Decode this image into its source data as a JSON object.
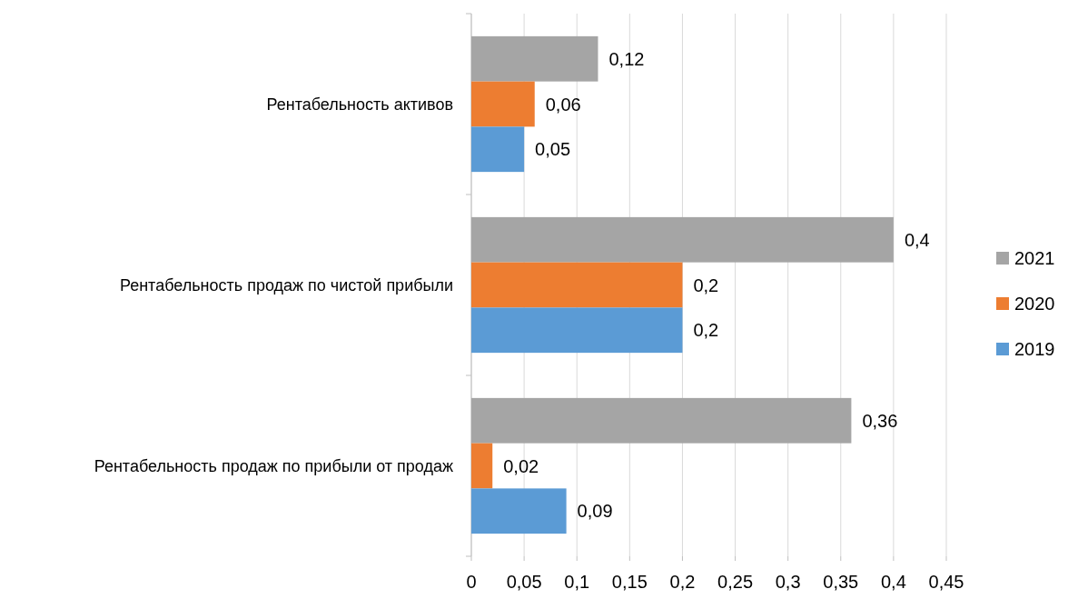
{
  "chart_data": {
    "type": "bar",
    "orientation": "horizontal",
    "categories": [
      "Рентабельность активов",
      "Рентабельность продаж по чистой прибыли",
      "Рентабельность продаж по прибыли от продаж"
    ],
    "series": [
      {
        "name": "2021",
        "color": "#a5a5a5",
        "values": [
          0.12,
          0.4,
          0.36
        ],
        "value_labels": [
          "0,12",
          "0,4",
          "0,36"
        ]
      },
      {
        "name": "2020",
        "color": "#ed7d31",
        "values": [
          0.06,
          0.2,
          0.02
        ],
        "value_labels": [
          "0,06",
          "0,2",
          "0,02"
        ]
      },
      {
        "name": "2019",
        "color": "#5b9bd5",
        "values": [
          0.05,
          0.2,
          0.09
        ],
        "value_labels": [
          "0,05",
          "0,2",
          "0,09"
        ]
      }
    ],
    "xlim": [
      0,
      0.45
    ],
    "xticks": [
      0,
      {
        "value": 0.05,
        "label": "0,05"
      },
      {
        "value": 0.1,
        "label": "0,1"
      },
      {
        "value": 0.15,
        "label": "0,15"
      },
      {
        "value": 0.2,
        "label": "0,2"
      },
      {
        "value": 0.25,
        "label": "0,25"
      },
      {
        "value": 0.3,
        "label": "0,3"
      },
      {
        "value": 0.35,
        "label": "0,35"
      },
      {
        "value": 0.4,
        "label": "0,4"
      },
      {
        "value": 0.45,
        "label": "0,45"
      }
    ],
    "grid": "x",
    "legend": "right"
  }
}
